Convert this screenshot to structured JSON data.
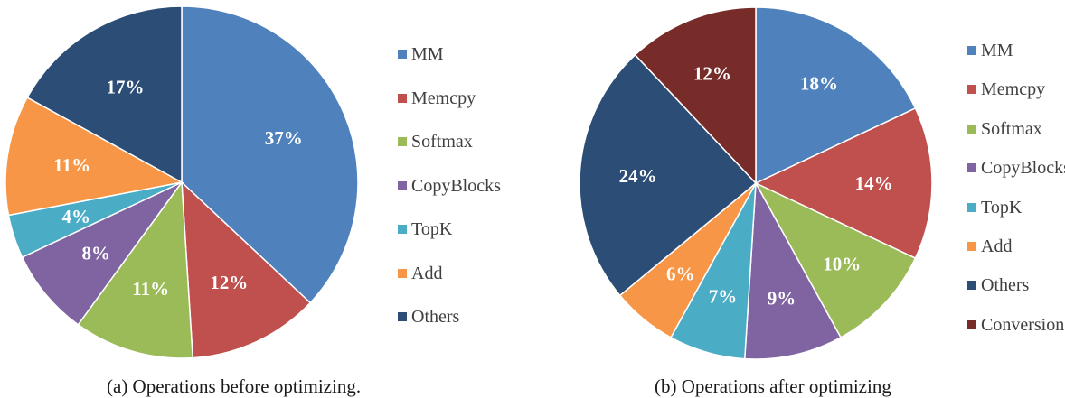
{
  "chart_data": [
    {
      "type": "pie",
      "caption": "(a)  Operations before optimizing.",
      "slices": [
        {
          "label": "MM",
          "value": 37,
          "display": "37%",
          "color": "#4f81bd"
        },
        {
          "label": "Memcpy",
          "value": 12,
          "display": "12%",
          "color": "#c0504d"
        },
        {
          "label": "Softmax",
          "value": 11,
          "display": "11%",
          "color": "#9bbb59"
        },
        {
          "label": "CopyBlocks",
          "value": 8,
          "display": "8%",
          "color": "#8064a2"
        },
        {
          "label": "TopK",
          "value": 4,
          "display": "4%",
          "color": "#4bacc6"
        },
        {
          "label": "Add",
          "value": 11,
          "display": "11%",
          "color": "#f79646"
        },
        {
          "label": "Others",
          "value": 17,
          "display": "17%",
          "color": "#2c4d75"
        }
      ],
      "legend": [
        "MM",
        "Memcpy",
        "Softmax",
        "CopyBlocks",
        "TopK",
        "Add",
        "Others"
      ],
      "legend_position": "right"
    },
    {
      "type": "pie",
      "caption": "(b)  Operations after optimizing",
      "slices": [
        {
          "label": "MM",
          "value": 18,
          "display": "18%",
          "color": "#4f81bd"
        },
        {
          "label": "Memcpy",
          "value": 14,
          "display": "14%",
          "color": "#c0504d"
        },
        {
          "label": "Softmax",
          "value": 10,
          "display": "10%",
          "color": "#9bbb59"
        },
        {
          "label": "CopyBlocks",
          "value": 9,
          "display": "9%",
          "color": "#8064a2"
        },
        {
          "label": "TopK",
          "value": 7,
          "display": "7%",
          "color": "#4bacc6"
        },
        {
          "label": "Add",
          "value": 6,
          "display": "6%",
          "color": "#f79646"
        },
        {
          "label": "Others",
          "value": 24,
          "display": "24%",
          "color": "#2c4d75"
        },
        {
          "label": "Conversion",
          "value": 12,
          "display": "12%",
          "color": "#772c2a"
        }
      ],
      "legend": [
        "MM",
        "Memcpy",
        "Softmax",
        "CopyBlocks",
        "TopK",
        "Add",
        "Others",
        "Conversion"
      ],
      "legend_position": "right"
    }
  ]
}
